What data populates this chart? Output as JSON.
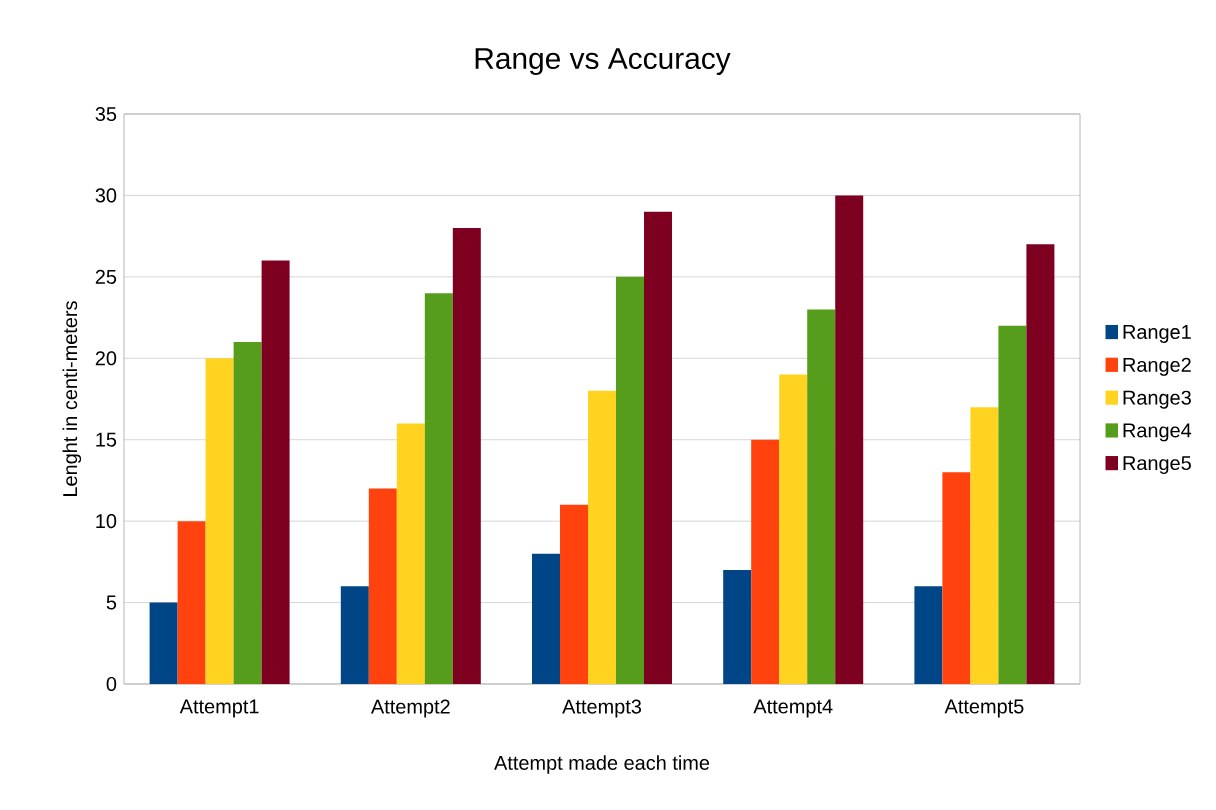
{
  "chart_data": {
    "type": "bar",
    "title": "Range vs Accuracy",
    "xlabel": "Attempt made each time",
    "ylabel": "Lenght in centi-meters",
    "categories": [
      "Attempt1",
      "Attempt2",
      "Attempt3",
      "Attempt4",
      "Attempt5"
    ],
    "series": [
      {
        "name": "Range1",
        "color": "#004586",
        "values": [
          5,
          6,
          8,
          7,
          6
        ]
      },
      {
        "name": "Range2",
        "color": "#ff420e",
        "values": [
          10,
          12,
          11,
          15,
          13
        ]
      },
      {
        "name": "Range3",
        "color": "#ffd320",
        "values": [
          20,
          16,
          18,
          19,
          17
        ]
      },
      {
        "name": "Range4",
        "color": "#579d1c",
        "values": [
          21,
          24,
          25,
          23,
          22
        ]
      },
      {
        "name": "Range5",
        "color": "#7e0021",
        "values": [
          26,
          28,
          29,
          30,
          27
        ]
      }
    ],
    "ylim": [
      0,
      35
    ],
    "yticks": [
      0,
      5,
      10,
      15,
      20,
      25,
      30,
      35
    ],
    "grid": "y",
    "legend": "right"
  }
}
